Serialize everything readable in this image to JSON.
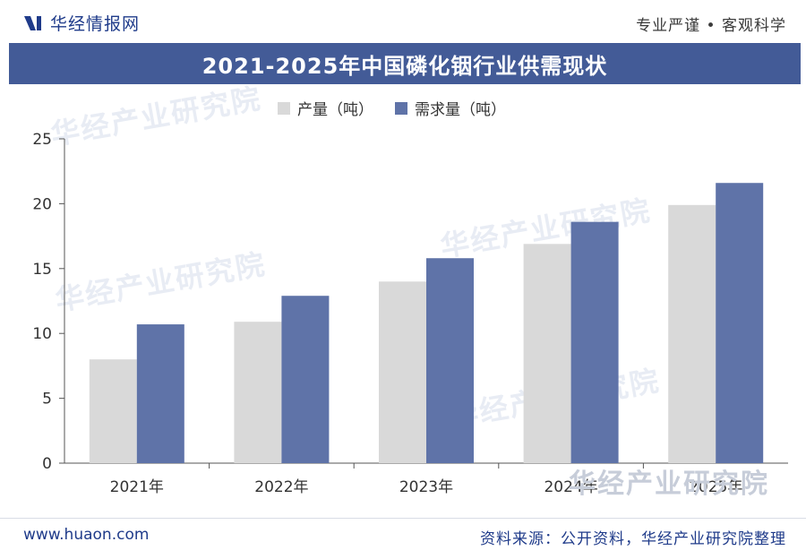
{
  "header": {
    "brand_name": "华经情报网",
    "tagline": "专业严谨 • 客观科学"
  },
  "colors": {
    "title_bar": "#435b97",
    "production": "#d9d9d9",
    "demand": "#5f73a8",
    "brand": "#1f3b8a"
  },
  "chart_data": {
    "type": "bar",
    "title": "2021-2025年中国磷化铟行业供需现状",
    "categories": [
      "2021年",
      "2022年",
      "2023年",
      "2024年",
      "2025年"
    ],
    "series": [
      {
        "name": "产量（吨）",
        "values": [
          8.0,
          10.9,
          14.0,
          16.9,
          19.9
        ]
      },
      {
        "name": "需求量（吨）",
        "values": [
          10.7,
          12.9,
          15.8,
          18.6,
          21.6
        ]
      }
    ],
    "yticks": [
      "0",
      "5",
      "10",
      "15",
      "20",
      "25"
    ],
    "ylim": [
      0,
      25
    ],
    "legend_position": "top-center",
    "grid": false
  },
  "watermark": {
    "text": "华经产业研究院"
  },
  "footer": {
    "url": "www.huaon.com",
    "source": "资料来源：公开资料，华经产业研究院整理"
  }
}
